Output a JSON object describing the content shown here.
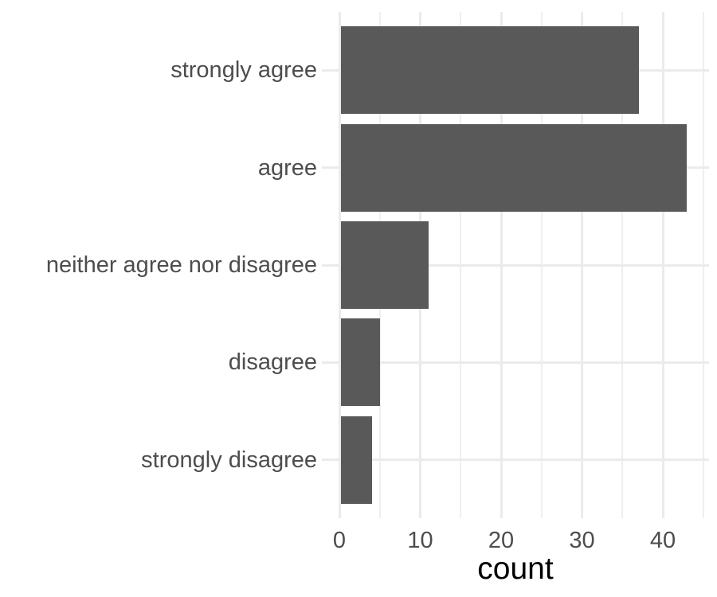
{
  "chart_data": {
    "type": "bar",
    "orientation": "horizontal",
    "title": "",
    "categories": [
      "strongly agree",
      "agree",
      "neither agree nor disagree",
      "disagree",
      "strongly disagree"
    ],
    "values": [
      37,
      43,
      11,
      5,
      4
    ],
    "xlabel": "count",
    "ylabel": "",
    "xlim": [
      0,
      45
    ],
    "x_major_ticks": [
      0,
      10,
      20,
      30,
      40
    ],
    "x_minor_ticks": [
      5,
      15,
      25,
      35,
      45
    ],
    "grid": "on",
    "legend": "none",
    "bar_width_fraction": 0.9,
    "colors": {
      "bar_fill": "#595959",
      "grid_major": "#EBEBEB",
      "grid_minor": "#EFEFEF",
      "axis_text": "#4D4D4D",
      "axis_title": "#000000",
      "background": "#FFFFFF"
    }
  }
}
